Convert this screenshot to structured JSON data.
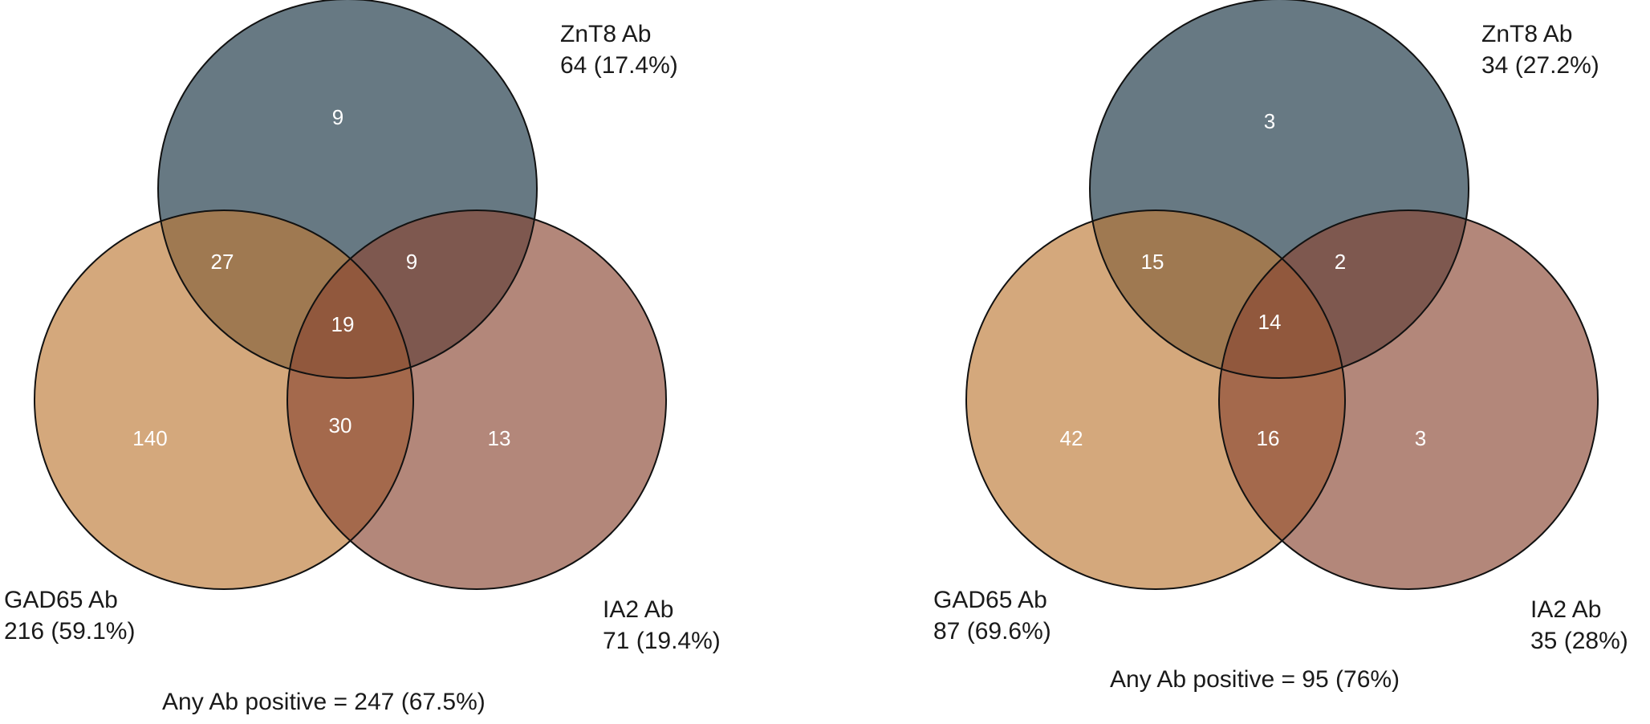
{
  "colors": {
    "znt8": "#5a6e78",
    "gad65": "#bd7a35",
    "ia2": "#8a4632",
    "outline": "#111111",
    "count_text": "#ffffff"
  },
  "diagrams": [
    {
      "sets": {
        "znt8": {
          "name": "ZnT8 Ab",
          "stat": "64 (17.4%)"
        },
        "gad65": {
          "name": "GAD65 Ab",
          "stat": "216 (59.1%)"
        },
        "ia2": {
          "name": "IA2 Ab",
          "stat": "71 (19.4%)"
        }
      },
      "regions": {
        "znt8_only": "9",
        "gad65_znt8": "27",
        "znt8_ia2": "9",
        "all_three": "19",
        "gad65_only": "140",
        "gad65_ia2": "30",
        "ia2_only": "13"
      },
      "footer": "Any Ab positive = 247 (67.5%)"
    },
    {
      "sets": {
        "znt8": {
          "name": "ZnT8 Ab",
          "stat": "34 (27.2%)"
        },
        "gad65": {
          "name": "GAD65 Ab",
          "stat": "87 (69.6%)"
        },
        "ia2": {
          "name": "IA2 Ab",
          "stat": "35 (28%)"
        }
      },
      "regions": {
        "znt8_only": "3",
        "gad65_znt8": "15",
        "znt8_ia2": "2",
        "all_three": "14",
        "gad65_only": "42",
        "gad65_ia2": "16",
        "ia2_only": "3"
      },
      "footer": "Any Ab positive = 95 (76%)"
    }
  ]
}
